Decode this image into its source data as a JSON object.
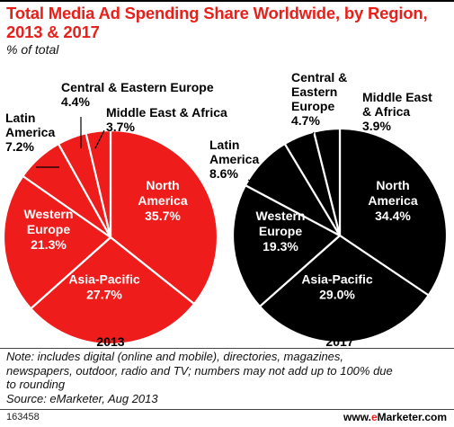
{
  "header": {
    "title_line1": "Total Media Ad Spending Share Worldwide, by Region,",
    "title_line2": "2013 & 2017",
    "subtitle": "% of total"
  },
  "footer": {
    "note_line1": "Note: includes digital (online and mobile), directories, magazines,",
    "note_line2": "newspapers, outdoor, radio and TV; numbers may not add up to 100% due",
    "note_line3": "to rounding",
    "source": "Source: eMarketer, Aug 2013",
    "chart_id": "163458",
    "brand_prefix": "www.",
    "brand_e": "e",
    "brand_suffix": "Marketer.com"
  },
  "colors": {
    "title": "#e8201b",
    "pie_2013": "#ef1c1c",
    "pie_2017": "#000000",
    "slice_border": "#ffffff"
  },
  "chart_data": [
    {
      "type": "pie",
      "year_label": "2013",
      "slices": [
        {
          "name": "North America",
          "label_lines": [
            "North",
            "America"
          ],
          "value_label": "35.7%",
          "value": 35.7
        },
        {
          "name": "Asia-Pacific",
          "label_lines": [
            "Asia-Pacific"
          ],
          "value_label": "27.7%",
          "value": 27.7
        },
        {
          "name": "Western Europe",
          "label_lines": [
            "Western",
            "Europe"
          ],
          "value_label": "21.3%",
          "value": 21.3
        },
        {
          "name": "Latin America",
          "label_lines": [
            "Latin",
            "America"
          ],
          "value_label": "7.2%",
          "value": 7.2
        },
        {
          "name": "Central & Eastern Europe",
          "label_lines": [
            "Central & Eastern Europe"
          ],
          "value_label": "4.4%",
          "value": 4.4
        },
        {
          "name": "Middle East & Africa",
          "label_lines": [
            "Middle East & Africa"
          ],
          "value_label": "3.7%",
          "value": 3.7
        }
      ]
    },
    {
      "type": "pie",
      "year_label": "2017",
      "slices": [
        {
          "name": "North America",
          "label_lines": [
            "North",
            "America"
          ],
          "value_label": "34.4%",
          "value": 34.4
        },
        {
          "name": "Asia-Pacific",
          "label_lines": [
            "Asia-Pacific"
          ],
          "value_label": "29.0%",
          "value": 29.0
        },
        {
          "name": "Western Europe",
          "label_lines": [
            "Western",
            "Europe"
          ],
          "value_label": "19.3%",
          "value": 19.3
        },
        {
          "name": "Latin America",
          "label_lines": [
            "Latin",
            "America"
          ],
          "value_label": "8.6%",
          "value": 8.6
        },
        {
          "name": "Central & Eastern Europe",
          "label_lines": [
            "Central &",
            "Eastern",
            "Europe"
          ],
          "value_label": "4.7%",
          "value": 4.7
        },
        {
          "name": "Middle East & Africa",
          "label_lines": [
            "Middle East",
            "& Africa"
          ],
          "value_label": "3.9%",
          "value": 3.9
        }
      ]
    }
  ]
}
